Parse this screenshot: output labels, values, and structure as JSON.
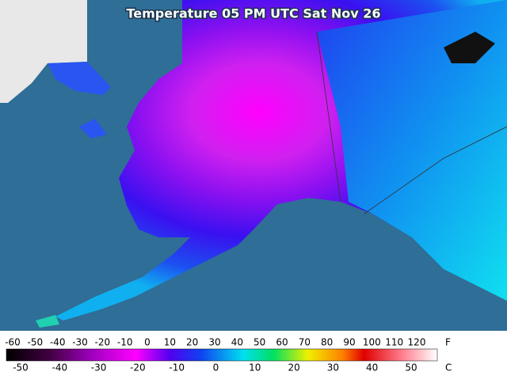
{
  "header": {
    "title": "Temperature 05 PM UTC Sat Nov 26"
  },
  "legend": {
    "f_labels": [
      -60,
      -50,
      -40,
      -30,
      -20,
      -10,
      0,
      10,
      20,
      30,
      40,
      50,
      60,
      70,
      80,
      90,
      100,
      110,
      120
    ],
    "f_unit": "F",
    "c_labels": [
      -50,
      -40,
      -30,
      -20,
      -10,
      0,
      10,
      20,
      30,
      40,
      50
    ],
    "c_unit": "C"
  }
}
